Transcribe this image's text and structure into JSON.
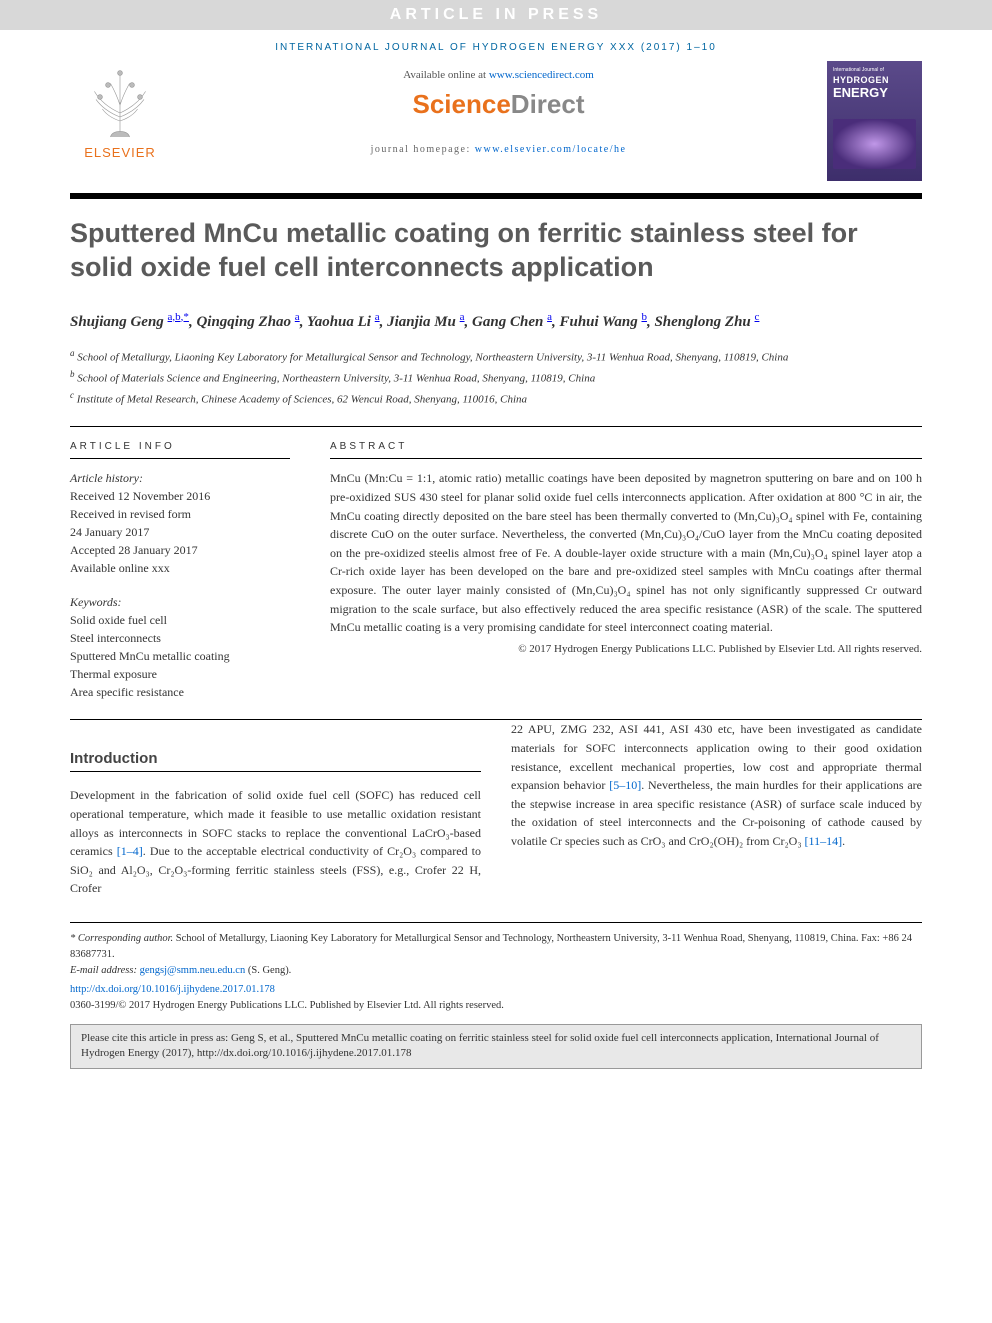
{
  "banner": "ARTICLE IN PRESS",
  "journalLine": "INTERNATIONAL JOURNAL OF HYDROGEN ENERGY XXX (2017) 1–10",
  "availableText": "Available online at ",
  "availableLink": "www.sciencedirect.com",
  "sdScience": "Science",
  "sdDirect": "Direct",
  "homepageLabel": "journal homepage: ",
  "homepageLink": "www.elsevier.com/locate/he",
  "elsevierName": "ELSEVIER",
  "cover": {
    "line1": "International Journal of",
    "line2": "HYDROGEN",
    "line3": "ENERGY"
  },
  "title": "Sputtered MnCu metallic coating on ferritic stainless steel for solid oxide fuel cell interconnects application",
  "authors": [
    {
      "name": "Shujiang Geng",
      "sup": "a,b,*"
    },
    {
      "name": "Qingqing Zhao",
      "sup": "a"
    },
    {
      "name": "Yaohua Li",
      "sup": "a"
    },
    {
      "name": "Jianjia Mu",
      "sup": "a"
    },
    {
      "name": "Gang Chen",
      "sup": "a"
    },
    {
      "name": "Fuhui Wang",
      "sup": "b"
    },
    {
      "name": "Shenglong Zhu",
      "sup": "c"
    }
  ],
  "affiliations": [
    {
      "sup": "a",
      "text": "School of Metallurgy, Liaoning Key Laboratory for Metallurgical Sensor and Technology, Northeastern University, 3-11 Wenhua Road, Shenyang, 110819, China"
    },
    {
      "sup": "b",
      "text": "School of Materials Science and Engineering, Northeastern University, 3-11 Wenhua Road, Shenyang, 110819, China"
    },
    {
      "sup": "c",
      "text": "Institute of Metal Research, Chinese Academy of Sciences, 62 Wencui Road, Shenyang, 110016, China"
    }
  ],
  "infoHeading": "ARTICLE INFO",
  "abstractHeading": "ABSTRACT",
  "history": {
    "label": "Article history:",
    "items": [
      "Received 12 November 2016",
      "Received in revised form",
      "24 January 2017",
      "Accepted 28 January 2017",
      "Available online xxx"
    ]
  },
  "keywords": {
    "label": "Keywords:",
    "items": [
      "Solid oxide fuel cell",
      "Steel interconnects",
      "Sputtered MnCu metallic coating",
      "Thermal exposure",
      "Area specific resistance"
    ]
  },
  "abstract": "MnCu (Mn:Cu = 1:1, atomic ratio) metallic coatings have been deposited by magnetron sputtering on bare and on 100 h pre-oxidized SUS 430 steel for planar solid oxide fuel cells interconnects application. After oxidation at 800 °C in air, the MnCu coating directly deposited on the bare steel has been thermally converted to (Mn,Cu)₃O₄ spinel with Fe, containing discrete CuO on the outer surface. Nevertheless, the converted (Mn,Cu)₃O₄/CuO layer from the MnCu coating deposited on the pre-oxidized steelis almost free of Fe. A double-layer oxide structure with a main (Mn,Cu)₃O₄ spinel layer atop a Cr-rich oxide layer has been developed on the bare and pre-oxidized steel samples with MnCu coatings after thermal exposure. The outer layer mainly consisted of (Mn,Cu)₃O₄ spinel has not only significantly suppressed Cr outward migration to the scale surface, but also effectively reduced the area specific resistance (ASR) of the scale. The sputtered MnCu metallic coating is a very promising candidate for steel interconnect coating material.",
  "copyright": "© 2017 Hydrogen Energy Publications LLC. Published by Elsevier Ltd. All rights reserved.",
  "introHeading": "Introduction",
  "introCol1a": "Development in the fabrication of solid oxide fuel cell (SOFC) has reduced cell operational temperature, which made it feasible to use metallic oxidation resistant alloys as interconnects in SOFC stacks to replace the conventional LaCrO₃-based ceramics ",
  "introRef1": "[1–4]",
  "introCol1b": ". Due to the acceptable electrical conductivity of Cr₂O₃ compared to SiO₂ and Al₂O₃, Cr₂O₃-forming ferritic stainless steels (FSS), e.g., Crofer 22 H, Crofer",
  "introCol2a": "22 APU, ZMG 232, ASI 441, ASI 430 etc, have been investigated as candidate materials for SOFC interconnects application owing to their good oxidation resistance, excellent mechanical properties, low cost and appropriate thermal expansion behavior ",
  "introRef2": "[5–10]",
  "introCol2b": ". Nevertheless, the main hurdles for their applications are the stepwise increase in area specific resistance (ASR) of surface scale induced by the oxidation of steel interconnects and the Cr-poisoning of cathode caused by volatile Cr species such as CrO₃ and CrO₂(OH)₂ from Cr₂O₃ ",
  "introRef3": "[11–14]",
  "introCol2c": ".",
  "corrLabel": "* Corresponding author.",
  "corrText": " School of Metallurgy, Liaoning Key Laboratory for Metallurgical Sensor and Technology, Northeastern University, 3-11 Wenhua Road, Shenyang, 110819, China. Fax: +86 24 83687731.",
  "emailLabel": "E-mail address: ",
  "emailLink": "gengsj@smm.neu.edu.cn",
  "emailSuffix": " (S. Geng).",
  "doiLink": "http://dx.doi.org/10.1016/j.ijhydene.2017.01.178",
  "issnLine": "0360-3199/© 2017 Hydrogen Energy Publications LLC. Published by Elsevier Ltd. All rights reserved.",
  "citeBox": "Please cite this article in press as: Geng S, et al., Sputtered MnCu metallic coating on ferritic stainless steel for solid oxide fuel cell interconnects application, International Journal of Hydrogen Energy (2017), http://dx.doi.org/10.1016/j.ijhydene.2017.01.178"
}
